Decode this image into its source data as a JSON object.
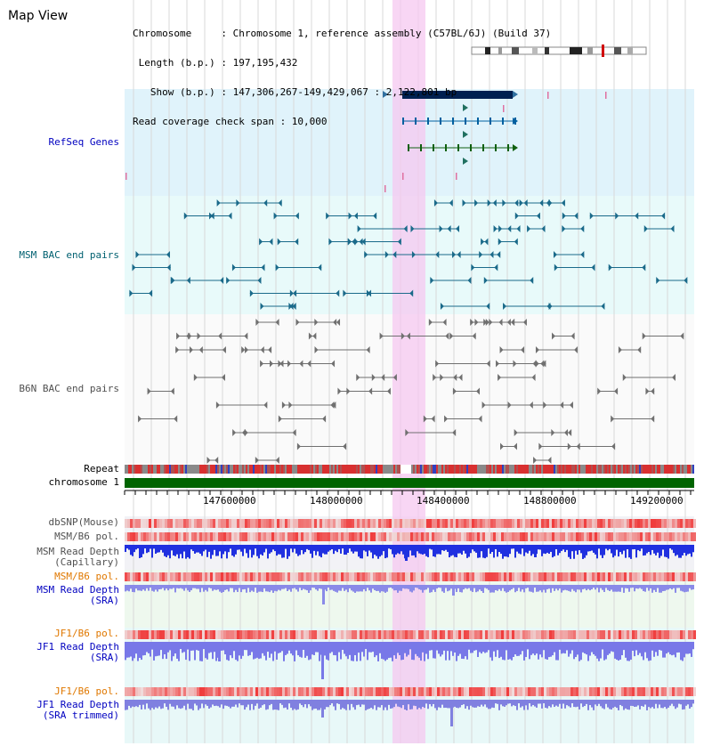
{
  "header": {
    "title": "Map View",
    "info_lines": [
      "Chromosome     : Chromosome 1, reference assembly (C57BL/6J) (Build 37)",
      " Length (b.p.) : 197,195,432",
      "   Show (b.p.) : 147,306,267-149,429,067 : 2,122,801 bp",
      "Read coverage check span : 10,000"
    ]
  },
  "tracks": {
    "refseq": "RefSeq Genes",
    "msm_bac": "MSM BAC end pairs",
    "b6n_bac": "B6N BAC end pairs",
    "repeat": "Repeat",
    "chromosome": "chromosome 1",
    "dbsnp": "dbSNP(Mouse)",
    "msm_b6_pol": "MSM/B6 pol.",
    "msm_depth_cap_1": "MSM Read Depth",
    "msm_depth_cap_2": "(Capillary)",
    "msm_b6_pol_2": "MSM/B6 pol.",
    "msm_depth_sra_1": "MSM Read Depth",
    "msm_depth_sra_2": "(SRA)",
    "jf1_b6_pol": "JF1/B6 pol.",
    "jf1_depth_1": "JF1 Read Depth",
    "jf1_depth_2": "(SRA)",
    "jf1_b6_pol_2": "JF1/B6 pol.",
    "jf1_trim_1": "JF1 Read Depth",
    "jf1_trim_2": "(SRA trimmed)"
  },
  "axis": {
    "ticks": [
      "147600000",
      "148000000",
      "148400000",
      "148800000",
      "149200000"
    ]
  },
  "colors": {
    "refseq_bg": "#e0f3fb",
    "msm_bg": "#e8fafa",
    "highlight": "#f6c8f0",
    "chrom_bar": "#006400",
    "gene_navy": "#002050"
  }
}
